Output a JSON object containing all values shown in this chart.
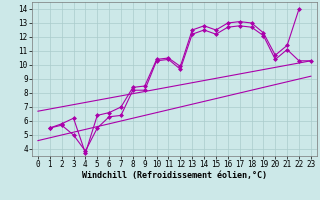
{
  "background_color": "#cce8e8",
  "grid_color": "#aacccc",
  "line_color": "#aa00aa",
  "marker_style": "D",
  "marker_size": 2,
  "line_width": 0.8,
  "xlabel": "Windchill (Refroidissement éolien,°C)",
  "xlabel_fontsize": 6.0,
  "tick_fontsize": 5.5,
  "xlim": [
    -0.5,
    23.5
  ],
  "ylim": [
    3.5,
    14.5
  ],
  "yticks": [
    4,
    5,
    6,
    7,
    8,
    9,
    10,
    11,
    12,
    13,
    14
  ],
  "xticks": [
    0,
    1,
    2,
    3,
    4,
    5,
    6,
    7,
    8,
    9,
    10,
    11,
    12,
    13,
    14,
    15,
    16,
    17,
    18,
    19,
    20,
    21,
    22,
    23
  ],
  "line1_x": [
    1,
    2,
    3,
    4,
    5,
    6,
    7,
    8,
    9,
    10,
    11,
    12,
    13,
    14,
    15,
    16,
    17,
    18,
    19,
    20,
    21,
    22
  ],
  "line1_y": [
    5.5,
    5.8,
    6.2,
    3.7,
    6.4,
    6.6,
    7.0,
    8.4,
    8.5,
    10.4,
    10.5,
    9.9,
    12.5,
    12.8,
    12.5,
    13.0,
    13.1,
    13.0,
    12.3,
    10.7,
    11.4,
    14.0
  ],
  "line2_x": [
    1,
    2,
    3,
    4,
    5,
    6,
    7,
    8,
    9,
    10,
    11,
    12,
    13,
    14,
    15,
    16,
    17,
    18,
    19,
    20,
    21,
    22,
    23
  ],
  "line2_y": [
    5.5,
    5.7,
    5.0,
    3.85,
    5.5,
    6.3,
    6.4,
    8.2,
    8.2,
    10.3,
    10.4,
    9.7,
    12.2,
    12.5,
    12.2,
    12.7,
    12.8,
    12.7,
    12.1,
    10.4,
    11.1,
    10.3,
    10.3
  ],
  "line3_x": [
    0,
    23
  ],
  "line3_y": [
    6.7,
    10.3
  ],
  "line4_x": [
    0,
    23
  ],
  "line4_y": [
    4.6,
    9.2
  ]
}
